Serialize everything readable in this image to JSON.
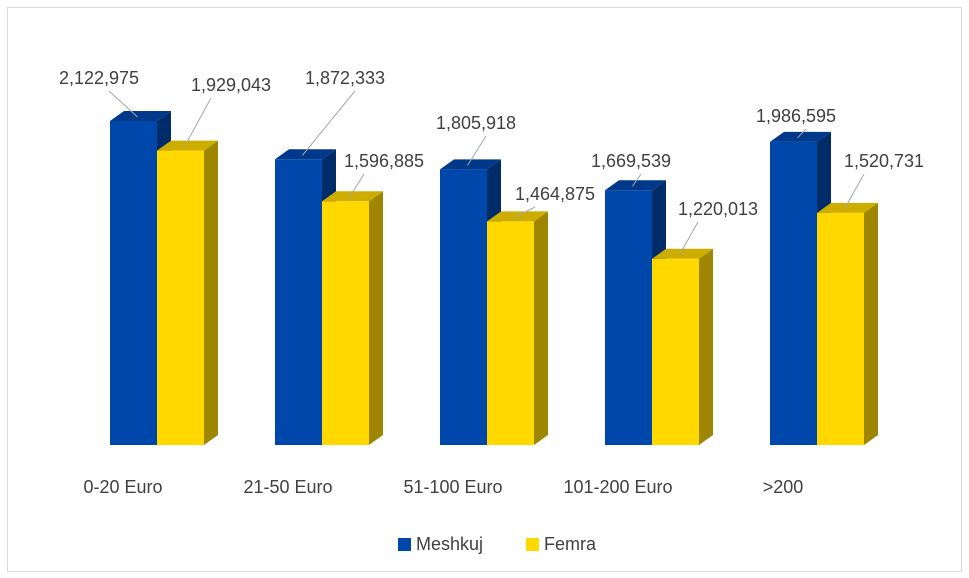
{
  "chart_data": {
    "type": "bar3d",
    "categories": [
      "0-20 Euro",
      "21-50 Euro",
      "51-100 Euro",
      "101-200 Euro",
      ">200"
    ],
    "series": [
      {
        "name": "Meshkuj",
        "color": "#0047ab",
        "values": [
          2122975,
          1872333,
          1805918,
          1669539,
          1986595
        ],
        "value_labels": [
          "2,122,975",
          "1,872,333",
          "1,805,918",
          "1,669,539",
          "1,986,595"
        ]
      },
      {
        "name": "Femra",
        "color": "#ffd800",
        "values": [
          1929043,
          1596885,
          1464875,
          1220013,
          1520731
        ],
        "value_labels": [
          "1,929,043",
          "1,596,885",
          "1,464,875",
          "1,220,013",
          "1,520,731"
        ]
      }
    ],
    "legend": "bottom"
  }
}
